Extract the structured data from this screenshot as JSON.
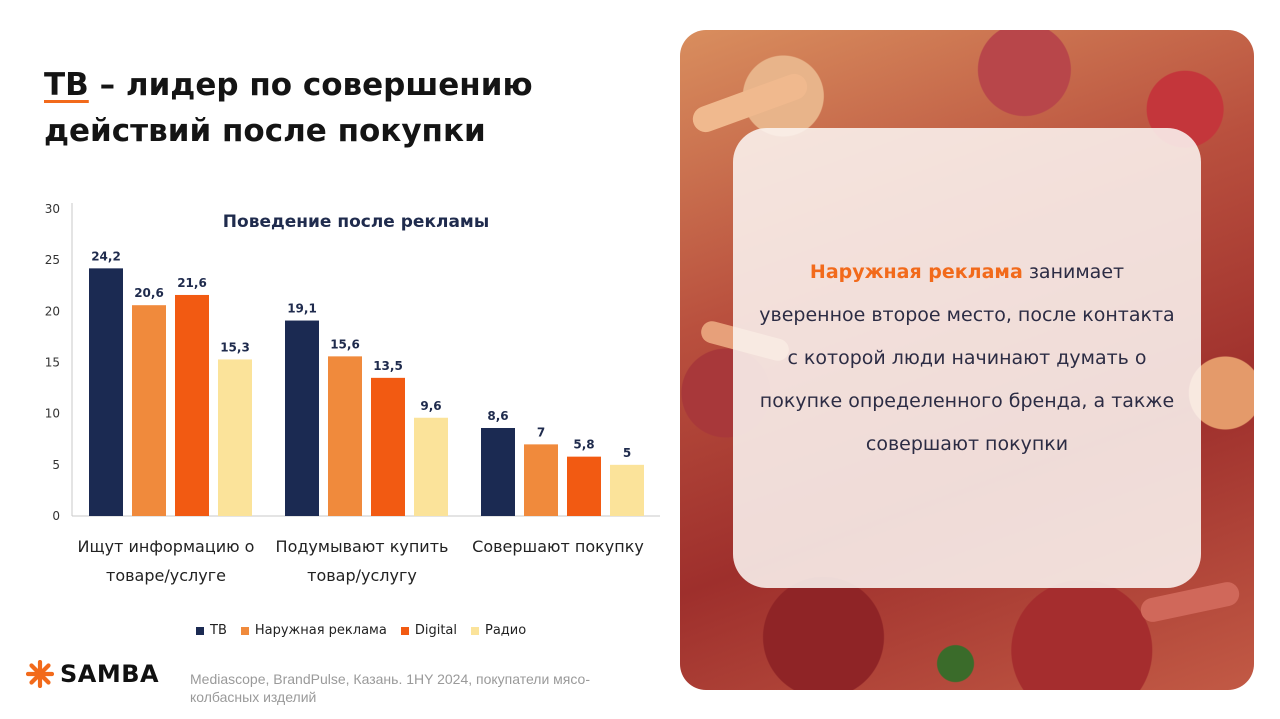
{
  "slide": {
    "title_accent": "ТВ",
    "title_rest_line1": " – лидер по совершению",
    "title_line2": "действий после покупки"
  },
  "chart_data": {
    "type": "bar",
    "title": "Поведение после рекламы",
    "categories": [
      [
        "Ищут информацию о",
        "товаре/услуге"
      ],
      [
        "Подумывают купить",
        "товар/услугу"
      ],
      [
        "Совершают покупку"
      ]
    ],
    "series": [
      {
        "name": "ТВ",
        "color": "#1b2a52",
        "values": [
          24.2,
          19.1,
          8.6
        ],
        "labels": [
          "24,2",
          "19,1",
          "8,6"
        ]
      },
      {
        "name": "Наружная реклама",
        "color": "#f08a3c",
        "values": [
          20.6,
          15.6,
          7
        ],
        "labels": [
          "20,6",
          "15,6",
          "7"
        ]
      },
      {
        "name": "Digital",
        "color": "#f25a12",
        "values": [
          21.6,
          13.5,
          5.8
        ],
        "labels": [
          "21,6",
          "13,5",
          "5,8"
        ]
      },
      {
        "name": "Радио",
        "color": "#fbe39a",
        "values": [
          15.3,
          9.6,
          5
        ],
        "labels": [
          "15,3",
          "9,6",
          "5"
        ]
      }
    ],
    "ylim": [
      0,
      30
    ],
    "yticks": [
      "0",
      "5",
      "10",
      "15",
      "20",
      "25",
      "30"
    ],
    "legend": "bottom",
    "grid": false
  },
  "card": {
    "highlight": "Наружная реклама",
    "text": " занимает уверенное второе место, после контакта с которой люди начинают думать о покупке определенного бренда, а также совершают покупки"
  },
  "footer": {
    "logo_text": "SAMBA",
    "source": "Mediascope, BrandPulse, Казань. 1HY 2024, покупатели мясо-колбасных изделий"
  },
  "colors": {
    "accent": "#f26a1b",
    "navy": "#1b2a52"
  }
}
